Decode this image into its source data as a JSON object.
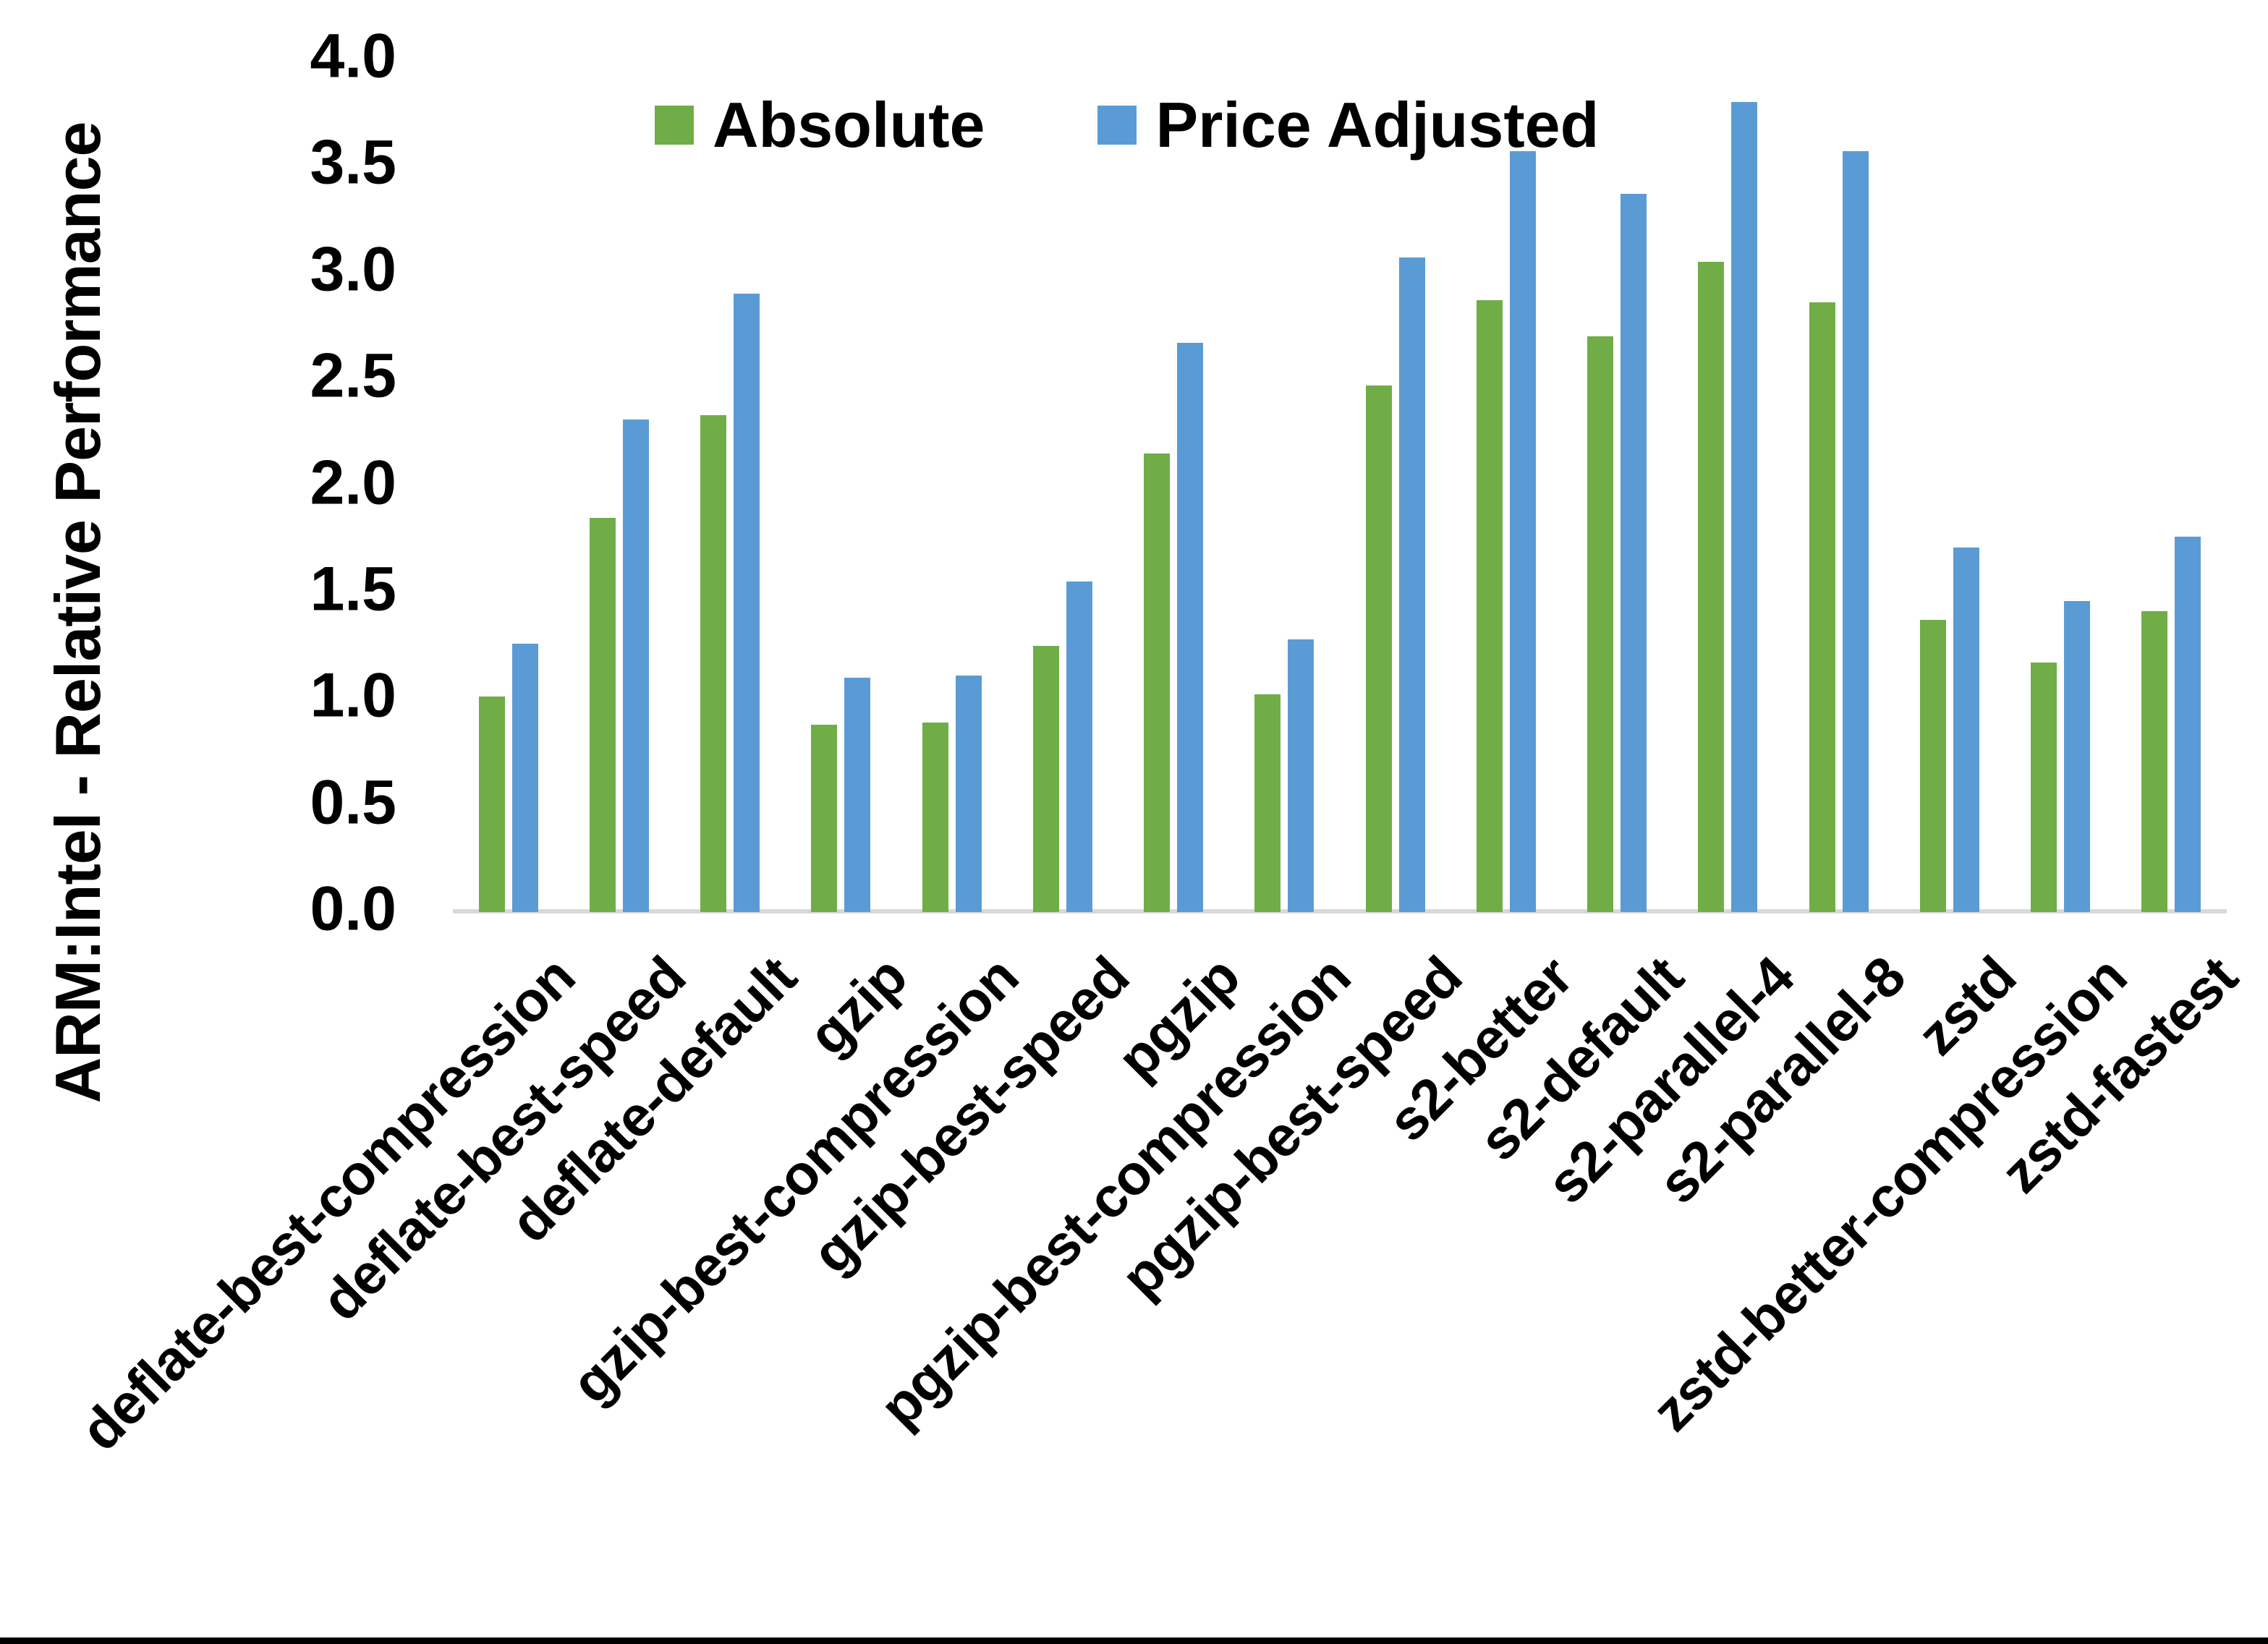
{
  "chart_data": {
    "type": "bar",
    "title": "",
    "xlabel": "",
    "ylabel": "ARM:Intel - Relative Performance",
    "ylim": [
      0.0,
      4.0
    ],
    "ytick_labels": [
      "4.0",
      "3.5",
      "3.0",
      "2.5",
      "2.0",
      "1.5",
      "1.0",
      "0.5",
      "0.0"
    ],
    "grid": false,
    "legend_position": "top-center",
    "categories": [
      "deflate-best-compression",
      "deflate-best-speed",
      "deflate-default",
      "gzip",
      "gzip-best-compression",
      "gzip-best-speed",
      "pgzip",
      "pgzip-best-compression",
      "pgzip-best-speed",
      "s2-better",
      "s2-default",
      "s2-parallel-4",
      "s2-parallel-8",
      "zstd",
      "zstd-better-compression",
      "zstd-fastest"
    ],
    "series": [
      {
        "name": "Absolute",
        "color": "#70AD47",
        "values": [
          1.01,
          1.85,
          2.33,
          0.88,
          0.89,
          1.25,
          2.15,
          1.02,
          2.47,
          2.87,
          2.7,
          3.05,
          2.86,
          1.37,
          1.17,
          1.41
        ]
      },
      {
        "name": "Price Adjusted",
        "color": "#5B9BD5",
        "values": [
          1.26,
          2.31,
          2.9,
          1.1,
          1.11,
          1.55,
          2.67,
          1.28,
          3.07,
          3.57,
          3.37,
          3.8,
          3.57,
          1.71,
          1.46,
          1.76
        ]
      }
    ]
  },
  "colors": {
    "background": "#FFFFFF",
    "axis_line": "#D9D9D9",
    "text": "#000000",
    "bottom_border": "#000000"
  }
}
